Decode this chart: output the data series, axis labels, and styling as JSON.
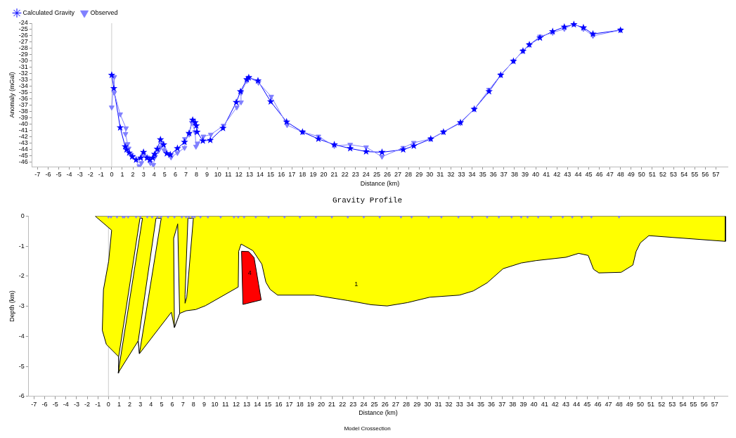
{
  "chart_data": [
    {
      "type": "line",
      "title": "Gravity Profile",
      "xlabel": "Distance (km)",
      "ylabel": "Anomaly (mGal)",
      "legend": "top left",
      "grid": false,
      "xlim": [
        -7.5,
        58.1
      ],
      "ylim": [
        -46.7,
        -24
      ],
      "xticks": [
        -7,
        -6,
        -5,
        -4,
        -3,
        -2,
        -1,
        0,
        1,
        2,
        3,
        4,
        5,
        6,
        7,
        8,
        9,
        10,
        11,
        12,
        13,
        14,
        15,
        16,
        17,
        18,
        19,
        20,
        21,
        22,
        23,
        24,
        25,
        26,
        27,
        28,
        29,
        30,
        31,
        32,
        33,
        34,
        35,
        36,
        37,
        38,
        39,
        40,
        41,
        42,
        43,
        44,
        45,
        46,
        47,
        48,
        49,
        50,
        51,
        52,
        53,
        54,
        55,
        56,
        57
      ],
      "yticks": [
        -24,
        -25,
        -26,
        -27,
        -28,
        -29,
        -30,
        -31,
        -32,
        -33,
        -34,
        -35,
        -36,
        -37,
        -38,
        -39,
        -40,
        -41,
        -42,
        -43,
        -44,
        -45,
        -46
      ],
      "ref_lines": [
        {
          "axis": "x",
          "value": 0,
          "color": "#cccccc"
        }
      ],
      "series": [
        {
          "name": "Calculated Gravity",
          "marker": "star",
          "color": "#0000ff",
          "x": [
            0,
            0.2,
            0.8,
            1.27,
            1.4,
            1.65,
            1.93,
            2.3,
            2.73,
            3.0,
            3.33,
            3.6,
            3.87,
            4.05,
            4.3,
            4.6,
            4.9,
            5.2,
            5.53,
            6.2,
            6.87,
            7.3,
            7.64,
            7.87,
            7.98,
            8.05,
            8.6,
            9.3,
            10.5,
            11.75,
            12.15,
            12.75,
            12.93,
            13.8,
            15.0,
            16.5,
            18.0,
            19.5,
            21.0,
            22.5,
            24.0,
            25.5,
            27.5,
            28.5,
            30.1,
            31.3,
            32.9,
            34.2,
            35.6,
            36.7,
            37.9,
            38.8,
            39.4,
            40.4,
            41.6,
            42.7,
            43.6,
            44.5,
            45.4,
            48.0
          ],
          "values": [
            -32.2,
            -34.3,
            -40.5,
            -43.5,
            -44.0,
            -44.5,
            -45.1,
            -45.6,
            -45.3,
            -44.4,
            -45.3,
            -45.6,
            -45.3,
            -44.7,
            -43.9,
            -42.4,
            -43.2,
            -44.6,
            -44.8,
            -43.8,
            -42.8,
            -41.4,
            -39.3,
            -39.7,
            -40.2,
            -41.2,
            -42.6,
            -42.5,
            -40.6,
            -36.5,
            -34.8,
            -32.9,
            -32.6,
            -33.1,
            -36.4,
            -39.6,
            -41.2,
            -42.3,
            -43.2,
            -43.8,
            -44.3,
            -44.4,
            -44.0,
            -43.4,
            -42.3,
            -41.2,
            -39.7,
            -37.6,
            -34.8,
            -32.2,
            -30.0,
            -28.4,
            -27.4,
            -26.3,
            -25.3,
            -24.6,
            -24.2,
            -24.7,
            -25.7,
            -25.1
          ]
        },
        {
          "name": "Observed",
          "marker": "triangle",
          "color": "#8080ff",
          "x": [
            0,
            0.24,
            0.24,
            0.8,
            1.35,
            1.3,
            1.5,
            1.6,
            1.85,
            2.0,
            2.6,
            2.8,
            3.0,
            3.33,
            3.65,
            3.93,
            4.1,
            4.4,
            4.6,
            4.7,
            4.95,
            5.6,
            6.2,
            6.87,
            6.9,
            7.3,
            7.55,
            7.87,
            7.95,
            8.1,
            8.65,
            9.35,
            10.55,
            11.8,
            12.2,
            12.2,
            12.75,
            12.95,
            13.85,
            15.05,
            16.55,
            18.0,
            19.5,
            21.0,
            22.5,
            24.0,
            25.5,
            27.5,
            28.5,
            30.1,
            31.3,
            32.9,
            34.2,
            35.6,
            36.7,
            37.9,
            38.8,
            39.4,
            40.4,
            41.6,
            42.7,
            43.6,
            44.5,
            45.4,
            48.0
          ],
          "values": [
            -37.3,
            -32.5,
            -35.0,
            -38.4,
            -40.6,
            -41.5,
            -43.1,
            -43.8,
            -44.8,
            -45.1,
            -46.6,
            -46.1,
            -44.8,
            -45.2,
            -46.1,
            -46.4,
            -45.1,
            -44.2,
            -43.6,
            -42.9,
            -44.1,
            -45.2,
            -44.5,
            -43.7,
            -42.3,
            -41.6,
            -39.7,
            -41.2,
            -43.5,
            -43.0,
            -41.9,
            -41.6,
            -40.2,
            -37.3,
            -36.5,
            -35.0,
            -33.1,
            -32.6,
            -33.4,
            -35.6,
            -40.1,
            -41.2,
            -41.9,
            -43.4,
            -43.2,
            -43.6,
            -45.1,
            -43.7,
            -42.9,
            -42.3,
            -41.2,
            -39.8,
            -37.6,
            -34.5,
            -32.2,
            -30.0,
            -28.4,
            -27.4,
            -26.1,
            -25.5,
            -24.9,
            -24.1,
            -24.9,
            -26.0,
            -25.1
          ]
        }
      ]
    },
    {
      "type": "area",
      "title": "Model Crossection",
      "xlabel": "Distance (km)",
      "ylabel": "Depth (km)",
      "legend": false,
      "grid": false,
      "xlim": [
        -7.5,
        58.2
      ],
      "ylim": [
        -6,
        0
      ],
      "xticks": [
        -7,
        -6,
        -5,
        -4,
        -3,
        -2,
        -1,
        0,
        1,
        2,
        3,
        4,
        5,
        6,
        7,
        8,
        9,
        10,
        11,
        12,
        13,
        14,
        15,
        16,
        17,
        18,
        19,
        20,
        21,
        22,
        23,
        24,
        25,
        26,
        27,
        28,
        29,
        30,
        31,
        32,
        33,
        34,
        35,
        36,
        37,
        38,
        39,
        40,
        41,
        42,
        43,
        44,
        45,
        46,
        47,
        48,
        49,
        50,
        51,
        52,
        53,
        54,
        55,
        56,
        57
      ],
      "yticks": [
        0,
        -1,
        -2,
        -3,
        -4,
        -5,
        -6
      ],
      "ref_lines": [
        {
          "axis": "x",
          "value": 0,
          "color": "#cccccc"
        }
      ],
      "series": [
        {
          "name": "1",
          "color": "#ffff00",
          "x": [
            -1.25,
            58.0,
            58.0,
            50.8,
            50.0,
            49.6,
            49.3,
            48.2,
            46.1,
            45.6,
            45.1,
            44.2,
            43.0,
            40.2,
            38.8,
            37.1,
            35.6,
            34.3,
            33.0,
            30.2,
            28.1,
            26.2,
            24.7,
            22.5,
            19.36,
            15.9,
            15.2,
            14.8,
            14.42,
            13.58,
            12.47,
            12.24,
            12.2,
            9.13,
            8.2,
            7.31,
            6.69,
            6.2,
            5.91,
            2.91,
            2.8,
            0.91,
            0.96,
            -0.2,
            -0.58,
            -0.47,
            0.02,
            0.3
          ],
          "values": [
            0,
            0,
            -0.84,
            -0.65,
            -0.89,
            -1.18,
            -1.63,
            -1.87,
            -1.89,
            -1.77,
            -1.31,
            -1.24,
            -1.37,
            -1.48,
            -1.56,
            -1.75,
            -2.22,
            -2.49,
            -2.63,
            -2.7,
            -2.88,
            -2.99,
            -2.95,
            -2.81,
            -2.63,
            -2.63,
            -2.44,
            -2.2,
            -1.6,
            -1.15,
            -0.93,
            -1.17,
            -2.36,
            -2.98,
            -3.11,
            -3.15,
            -3.24,
            -3.71,
            -3.2,
            -4.58,
            -4.15,
            -5.22,
            -4.68,
            -4.27,
            -3.8,
            -2.45,
            -1.5,
            -0.47
          ]
        },
        {
          "color": "#ffffff",
          "x": [
            2.96,
            3.2,
            0.91,
            0.96
          ],
          "values": [
            -0.07,
            -0.07,
            -5.22,
            -4.68
          ]
        },
        {
          "color": "#ffffff",
          "x": [
            4.47,
            4.96,
            2.91,
            2.8
          ],
          "values": [
            -0.07,
            -0.07,
            -4.58,
            -4.15
          ]
        },
        {
          "color": "#ffffff",
          "x": [
            6.13,
            6.51,
            6.69,
            6.2
          ],
          "values": [
            -0.74,
            -0.26,
            -3.24,
            -3.71
          ]
        },
        {
          "color": "#ffffff",
          "x": [
            7.47,
            7.98,
            7.36,
            7.2,
            7.2
          ],
          "values": [
            -0.07,
            -0.07,
            -2.7,
            -2.9,
            -2.6
          ]
        },
        {
          "name": "4",
          "color": "#ff0000",
          "x": [
            12.51,
            13.18,
            13.69,
            14.36,
            12.64
          ],
          "values": [
            -1.17,
            -1.18,
            -1.38,
            -2.79,
            -2.94
          ]
        },
        {
          "type": "scatter",
          "marker": "triangle",
          "color": "#8080ff",
          "x": [
            0,
            0.24,
            0.8,
            1.35,
            1.5,
            1.85,
            2.6,
            3.0,
            3.65,
            4.1,
            4.6,
            4.95,
            5.6,
            6.2,
            6.9,
            7.3,
            7.55,
            7.87,
            8.1,
            8.65,
            9.35,
            10.55,
            11.8,
            12.2,
            12.75,
            13.85,
            15.05,
            16.55,
            18.0,
            19.5,
            21.0,
            22.5,
            24.0,
            25.5,
            27.5,
            28.5,
            30.1,
            31.3,
            32.9,
            34.2,
            35.6,
            36.7,
            37.9,
            38.8,
            39.4,
            40.4,
            41.6,
            42.7,
            43.6,
            44.5,
            45.4,
            48.0
          ],
          "values": [
            0,
            0,
            0,
            0,
            0,
            0,
            0,
            0,
            0,
            0,
            0,
            0,
            0,
            0,
            0,
            0,
            0,
            0,
            0,
            0,
            0,
            0,
            0,
            0,
            0,
            0,
            0,
            0,
            0,
            0,
            0,
            0,
            0,
            0,
            0,
            0,
            0,
            0,
            0,
            0,
            0,
            0,
            0,
            0,
            0,
            0,
            0,
            0,
            0,
            0,
            0,
            0
          ]
        }
      ]
    }
  ]
}
